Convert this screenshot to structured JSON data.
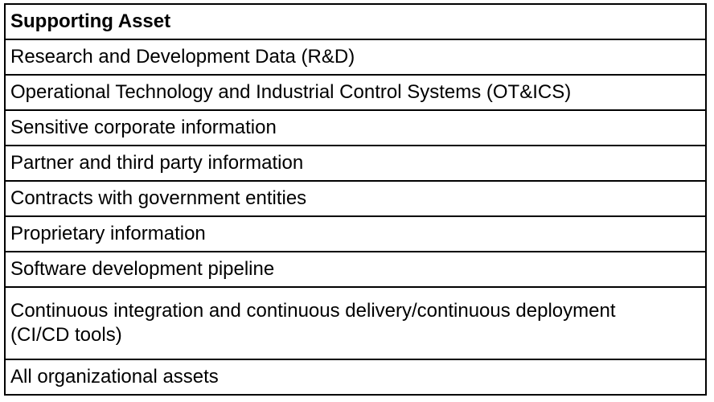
{
  "table": {
    "header": "Supporting Asset",
    "rows": [
      "Research and Development Data (R&D)",
      "Operational Technology and Industrial Control Systems (OT&ICS)",
      "Sensitive corporate information",
      "Partner and third party information",
      "Contracts with government entities",
      "Proprietary information",
      "Software development pipeline",
      "Continuous integration and continuous delivery/continuous deployment (CI/CD tools)",
      "All organizational assets"
    ]
  }
}
